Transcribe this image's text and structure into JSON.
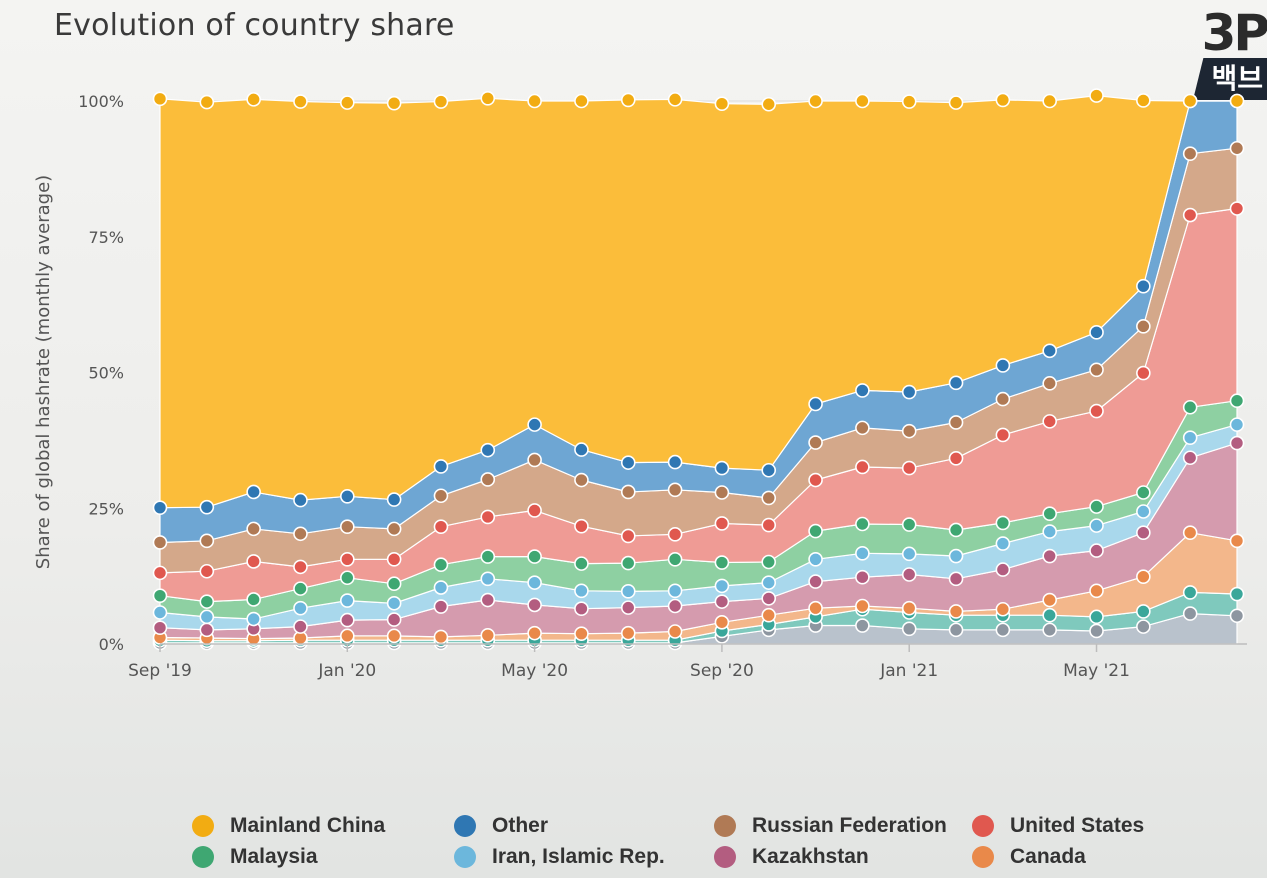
{
  "title": "Evolution of country share",
  "brand": {
    "top": "3P",
    "bottom": "백브"
  },
  "colors": {
    "Mainland China": "#fbbd3a",
    "Other": "#6ea6d3",
    "Russian Federation": "#d4a88a",
    "United States": "#ef9b95",
    "Malaysia": "#8ed0a2",
    "Iran, Islamic Rep.": "#a9d8ec",
    "Kazakhstan": "#d59bae",
    "Canada": "#f3b78b",
    "Series 9": "#7fc9bd",
    "Series 10": "#b9c2cc"
  },
  "markerColors": {
    "Mainland China": "#f2ac12",
    "Other": "#2f77b3",
    "Russian Federation": "#b07a55",
    "United States": "#e0584f",
    "Malaysia": "#3fa772",
    "Iran, Islamic Rep.": "#6cb7dc",
    "Kazakhstan": "#b35d80",
    "Canada": "#e9894a",
    "Series 9": "#3aa79a",
    "Series 10": "#8d96a0"
  },
  "chart_data": {
    "type": "area",
    "stacked": true,
    "ylabel": "Share of global hashrate (monthly average)",
    "ylim": [
      0,
      100
    ],
    "yticks": [
      "0%",
      "25%",
      "50%",
      "75%",
      "100%"
    ],
    "xticks": [
      "Sep '19",
      "Jan '20",
      "May '20",
      "Sep '20",
      "Jan '21",
      "May '21"
    ],
    "xtick_index": [
      0,
      4,
      8,
      12,
      16,
      20
    ],
    "x": [
      "2019-09",
      "2019-10",
      "2019-11",
      "2019-12",
      "2020-01",
      "2020-02",
      "2020-03",
      "2020-04",
      "2020-05",
      "2020-06",
      "2020-07",
      "2020-08",
      "2020-09",
      "2020-10",
      "2020-11",
      "2020-12",
      "2021-01",
      "2021-02",
      "2021-03",
      "2021-04",
      "2021-05",
      "2021-06",
      "2021-07",
      "2021-08"
    ],
    "grid": true,
    "legend_position": "bottom",
    "series": [
      {
        "name": "",
        "key": "Series 10",
        "values": [
          0.2,
          0.2,
          0.2,
          0.2,
          0.2,
          0.2,
          0.2,
          0.2,
          0.2,
          0.2,
          0.2,
          0.2,
          1.4,
          2.6,
          3.4,
          3.4,
          2.8,
          2.6,
          2.6,
          2.6,
          2.4,
          3.2,
          5.6,
          5.2
        ]
      },
      {
        "name": "",
        "key": "Series 9",
        "values": [
          0.5,
          0.4,
          0.4,
          0.5,
          0.5,
          0.5,
          0.5,
          0.5,
          0.5,
          0.5,
          0.5,
          0.5,
          1.0,
          1.0,
          1.6,
          3.0,
          3.0,
          2.7,
          2.7,
          2.7,
          2.6,
          2.8,
          3.9,
          4.0
        ]
      },
      {
        "name": "Canada",
        "key": "Canada",
        "values": [
          0.5,
          0.5,
          0.4,
          0.4,
          0.8,
          0.8,
          0.6,
          0.9,
          1.3,
          1.2,
          1.3,
          1.6,
          1.6,
          1.7,
          1.6,
          0.6,
          0.8,
          0.7,
          1.1,
          2.8,
          4.8,
          6.4,
          11.0,
          9.8
        ]
      },
      {
        "name": "Kazakhstan",
        "key": "Kazakhstan",
        "values": [
          1.8,
          1.5,
          1.8,
          2.1,
          2.9,
          3.0,
          5.6,
          6.5,
          5.2,
          4.6,
          4.7,
          4.7,
          3.8,
          3.1,
          4.9,
          5.3,
          6.2,
          6.0,
          7.3,
          8.1,
          7.4,
          8.1,
          13.8,
          18.0
        ]
      },
      {
        "name": "Iran, Islamic Rep.",
        "key": "Iran, Islamic Rep.",
        "values": [
          2.8,
          2.4,
          1.8,
          3.4,
          3.6,
          3.0,
          3.5,
          3.9,
          4.1,
          3.3,
          3.0,
          2.8,
          2.9,
          2.9,
          4.1,
          4.4,
          3.8,
          4.2,
          4.8,
          4.5,
          4.6,
          3.9,
          3.7,
          3.4
        ]
      },
      {
        "name": "Malaysia",
        "key": "Malaysia",
        "values": [
          3.1,
          2.8,
          3.6,
          3.6,
          4.2,
          3.6,
          4.2,
          4.1,
          4.8,
          5.0,
          5.2,
          5.8,
          4.3,
          3.8,
          5.2,
          5.4,
          5.4,
          4.8,
          3.8,
          3.3,
          3.5,
          3.5,
          5.6,
          4.4
        ]
      },
      {
        "name": "United States",
        "key": "United States",
        "values": [
          4.2,
          5.6,
          7.0,
          4.0,
          3.4,
          4.5,
          7.0,
          7.3,
          8.5,
          6.9,
          5.0,
          4.6,
          7.2,
          6.8,
          9.4,
          10.5,
          10.4,
          13.2,
          16.2,
          17.0,
          17.6,
          22.0,
          35.4,
          35.4
        ]
      },
      {
        "name": "Russian Federation",
        "key": "Russian Federation",
        "values": [
          5.6,
          5.6,
          6.0,
          6.1,
          6.0,
          5.6,
          5.7,
          6.9,
          9.3,
          8.5,
          8.1,
          8.2,
          5.7,
          5.0,
          6.9,
          7.2,
          6.8,
          6.6,
          6.6,
          7.0,
          7.6,
          8.6,
          11.3,
          11.1
        ]
      },
      {
        "name": "Other",
        "key": "Other",
        "values": [
          6.4,
          6.2,
          6.8,
          6.2,
          5.6,
          5.4,
          5.4,
          5.4,
          6.5,
          5.6,
          5.4,
          5.1,
          4.5,
          5.1,
          7.1,
          6.9,
          7.2,
          7.3,
          6.2,
          6.0,
          6.9,
          7.4,
          9.7,
          8.7
        ]
      },
      {
        "name": "Mainland China",
        "key": "Mainland China",
        "values": [
          75.3,
          74.6,
          72.3,
          73.4,
          72.5,
          73.0,
          67.2,
          64.8,
          59.6,
          64.2,
          66.8,
          66.8,
          67.1,
          67.4,
          55.8,
          53.3,
          53.5,
          51.6,
          48.9,
          46.0,
          43.6,
          34.2,
          0.0,
          0.0
        ]
      }
    ]
  },
  "legend": [
    {
      "label": "Mainland China",
      "key": "Mainland China"
    },
    {
      "label": "Other",
      "key": "Other"
    },
    {
      "label": "Russian Federation",
      "key": "Russian Federation"
    },
    {
      "label": "United States",
      "key": "United States"
    },
    {
      "label": "Malaysia",
      "key": "Malaysia"
    },
    {
      "label": "Iran, Islamic Rep.",
      "key": "Iran, Islamic Rep."
    },
    {
      "label": "Kazakhstan",
      "key": "Kazakhstan"
    },
    {
      "label": "Canada",
      "key": "Canada"
    }
  ]
}
